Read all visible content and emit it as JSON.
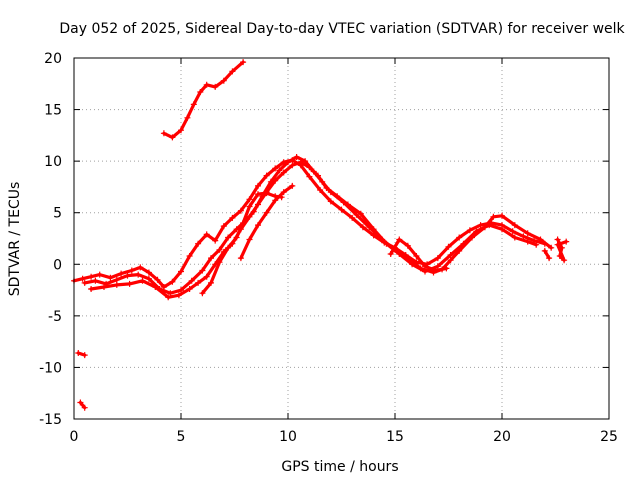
{
  "chart_data": {
    "type": "scatter",
    "title": "Day 052 of 2025, Sidereal Day-to-day VTEC variation (SDTVAR) for receiver welk",
    "xlabel": "GPS time / hours",
    "ylabel": "SDTVAR / TECUs",
    "xlim": [
      0,
      25
    ],
    "ylim": [
      -15,
      20
    ],
    "xticks": [
      0,
      5,
      10,
      15,
      20,
      25
    ],
    "yticks": [
      -15,
      -10,
      -5,
      0,
      5,
      10,
      15,
      20
    ],
    "grid": true,
    "marker": "+",
    "color": "#ff0000",
    "series": [
      {
        "name": "pass-a",
        "points": [
          [
            4.2,
            12.7
          ],
          [
            4.6,
            12.3
          ],
          [
            5.0,
            13.0
          ],
          [
            5.3,
            14.2
          ],
          [
            5.6,
            15.5
          ],
          [
            5.9,
            16.7
          ],
          [
            6.2,
            17.4
          ],
          [
            6.6,
            17.2
          ],
          [
            7.0,
            17.8
          ],
          [
            7.4,
            18.7
          ],
          [
            7.9,
            19.6
          ]
        ]
      },
      {
        "name": "pass-b",
        "points": [
          [
            0.2,
            -8.6
          ],
          [
            0.5,
            -8.8
          ]
        ]
      },
      {
        "name": "pass-c",
        "points": [
          [
            0.3,
            -13.4
          ],
          [
            0.5,
            -13.9
          ]
        ]
      },
      {
        "name": "pass-d",
        "points": [
          [
            0.0,
            -1.6
          ],
          [
            0.4,
            -1.4
          ],
          [
            0.8,
            -1.2
          ],
          [
            1.2,
            -1.0
          ],
          [
            1.7,
            -1.3
          ],
          [
            2.2,
            -0.9
          ],
          [
            2.7,
            -0.6
          ],
          [
            3.1,
            -0.3
          ],
          [
            3.5,
            -0.8
          ],
          [
            3.9,
            -1.5
          ],
          [
            4.2,
            -2.2
          ],
          [
            4.6,
            -1.7
          ],
          [
            5.0,
            -0.7
          ],
          [
            5.4,
            0.8
          ],
          [
            5.8,
            2.0
          ],
          [
            6.2,
            2.9
          ],
          [
            6.6,
            2.3
          ],
          [
            7.0,
            3.7
          ],
          [
            7.4,
            4.5
          ],
          [
            7.8,
            5.2
          ],
          [
            8.2,
            6.3
          ],
          [
            8.6,
            7.6
          ],
          [
            9.0,
            8.6
          ],
          [
            9.4,
            9.3
          ],
          [
            9.8,
            9.9
          ],
          [
            10.2,
            10.1
          ],
          [
            10.6,
            9.6
          ],
          [
            11.0,
            8.5
          ],
          [
            11.5,
            7.2
          ],
          [
            12.0,
            6.1
          ],
          [
            12.5,
            5.3
          ],
          [
            13.0,
            4.5
          ],
          [
            13.5,
            3.6
          ],
          [
            14.0,
            2.8
          ],
          [
            14.5,
            2.1
          ],
          [
            15.0,
            1.6
          ],
          [
            15.5,
            0.9
          ],
          [
            16.0,
            0.2
          ],
          [
            16.5,
            0.0
          ],
          [
            17.0,
            0.6
          ],
          [
            17.5,
            1.7
          ],
          [
            18.0,
            2.6
          ],
          [
            18.5,
            3.3
          ],
          [
            19.0,
            3.8
          ],
          [
            19.5,
            4.0
          ],
          [
            20.0,
            3.8
          ],
          [
            20.5,
            3.2
          ],
          [
            21.0,
            2.7
          ],
          [
            21.5,
            2.3
          ],
          [
            22.0,
            2.0
          ]
        ]
      },
      {
        "name": "pass-e",
        "points": [
          [
            0.5,
            -1.8
          ],
          [
            1.0,
            -1.6
          ],
          [
            1.5,
            -1.9
          ],
          [
            2.0,
            -1.5
          ],
          [
            2.5,
            -1.1
          ],
          [
            3.0,
            -1.0
          ],
          [
            3.5,
            -1.4
          ],
          [
            4.0,
            -2.4
          ],
          [
            4.5,
            -2.8
          ],
          [
            5.0,
            -2.5
          ],
          [
            5.5,
            -1.6
          ],
          [
            6.0,
            -0.6
          ],
          [
            6.4,
            0.6
          ],
          [
            6.8,
            1.4
          ],
          [
            7.2,
            2.6
          ],
          [
            7.6,
            3.4
          ],
          [
            8.0,
            4.2
          ],
          [
            8.4,
            5.1
          ],
          [
            8.8,
            6.6
          ],
          [
            9.2,
            8.0
          ],
          [
            9.6,
            9.1
          ],
          [
            10.0,
            9.9
          ],
          [
            10.4,
            10.4
          ],
          [
            10.8,
            10.0
          ],
          [
            11.2,
            9.0
          ],
          [
            11.6,
            8.0
          ],
          [
            12.0,
            7.0
          ],
          [
            12.6,
            6.0
          ],
          [
            13.2,
            4.8
          ],
          [
            13.8,
            3.6
          ],
          [
            14.4,
            2.4
          ],
          [
            15.0,
            1.4
          ],
          [
            15.6,
            0.6
          ],
          [
            16.2,
            -0.4
          ],
          [
            16.8,
            -0.8
          ],
          [
            17.2,
            -0.5
          ],
          [
            17.6,
            0.4
          ],
          [
            18.0,
            1.3
          ],
          [
            18.6,
            2.6
          ],
          [
            19.2,
            3.6
          ],
          [
            19.6,
            4.6
          ],
          [
            20.0,
            4.7
          ],
          [
            20.6,
            3.8
          ],
          [
            21.2,
            3.0
          ],
          [
            21.8,
            2.4
          ],
          [
            22.3,
            1.6
          ]
        ]
      },
      {
        "name": "pass-f",
        "points": [
          [
            0.8,
            -2.4
          ],
          [
            1.4,
            -2.2
          ],
          [
            2.0,
            -2.0
          ],
          [
            2.6,
            -1.9
          ],
          [
            3.2,
            -1.6
          ],
          [
            3.8,
            -2.2
          ],
          [
            4.4,
            -3.2
          ],
          [
            4.9,
            -3.0
          ],
          [
            5.4,
            -2.4
          ],
          [
            5.8,
            -1.8
          ],
          [
            6.2,
            -1.2
          ],
          [
            6.6,
            0.0
          ],
          [
            7.0,
            1.2
          ],
          [
            7.4,
            2.0
          ],
          [
            7.8,
            3.4
          ],
          [
            8.2,
            4.6
          ],
          [
            8.6,
            5.8
          ],
          [
            9.0,
            7.0
          ],
          [
            9.4,
            8.1
          ],
          [
            9.8,
            8.9
          ],
          [
            10.2,
            9.6
          ],
          [
            10.6,
            9.9
          ],
          [
            11.0,
            9.4
          ],
          [
            11.4,
            8.6
          ],
          [
            11.8,
            7.4
          ],
          [
            12.3,
            6.6
          ],
          [
            12.8,
            5.8
          ],
          [
            13.4,
            4.9
          ],
          [
            14.0,
            3.4
          ],
          [
            14.6,
            2.0
          ],
          [
            15.2,
            1.0
          ],
          [
            15.8,
            0.0
          ],
          [
            16.4,
            -0.7
          ],
          [
            17.0,
            -0.2
          ],
          [
            17.6,
            0.9
          ],
          [
            18.2,
            2.0
          ],
          [
            18.8,
            3.2
          ],
          [
            19.4,
            3.8
          ],
          [
            20.0,
            3.4
          ],
          [
            20.6,
            2.6
          ],
          [
            21.2,
            2.2
          ],
          [
            21.6,
            1.9
          ]
        ]
      },
      {
        "name": "pass-g",
        "points": [
          [
            6.0,
            -2.8
          ],
          [
            6.4,
            -1.8
          ],
          [
            6.8,
            0.2
          ],
          [
            7.2,
            1.6
          ],
          [
            7.6,
            2.6
          ],
          [
            7.9,
            4.0
          ],
          [
            8.2,
            5.6
          ],
          [
            8.6,
            6.8
          ],
          [
            9.0,
            6.9
          ],
          [
            9.4,
            6.6
          ],
          [
            9.7,
            6.5
          ]
        ]
      },
      {
        "name": "pass-h",
        "points": [
          [
            7.8,
            0.6
          ],
          [
            8.2,
            2.4
          ],
          [
            8.6,
            3.8
          ],
          [
            9.0,
            5.0
          ],
          [
            9.4,
            6.2
          ],
          [
            9.8,
            7.0
          ],
          [
            10.2,
            7.6
          ]
        ]
      },
      {
        "name": "pass-i",
        "points": [
          [
            14.8,
            1.0
          ],
          [
            15.2,
            2.4
          ],
          [
            15.6,
            1.8
          ],
          [
            16.0,
            0.8
          ],
          [
            16.4,
            -0.2
          ],
          [
            16.9,
            -0.6
          ],
          [
            17.4,
            -0.4
          ]
        ]
      },
      {
        "name": "pass-j",
        "points": [
          [
            22.0,
            1.3
          ],
          [
            22.2,
            0.6
          ]
        ]
      },
      {
        "name": "pass-k",
        "points": [
          [
            22.6,
            2.4
          ],
          [
            22.8,
            1.6
          ],
          [
            22.7,
            0.8
          ],
          [
            22.9,
            0.4
          ],
          [
            22.6,
            1.9
          ],
          [
            23.0,
            2.2
          ]
        ]
      }
    ]
  }
}
